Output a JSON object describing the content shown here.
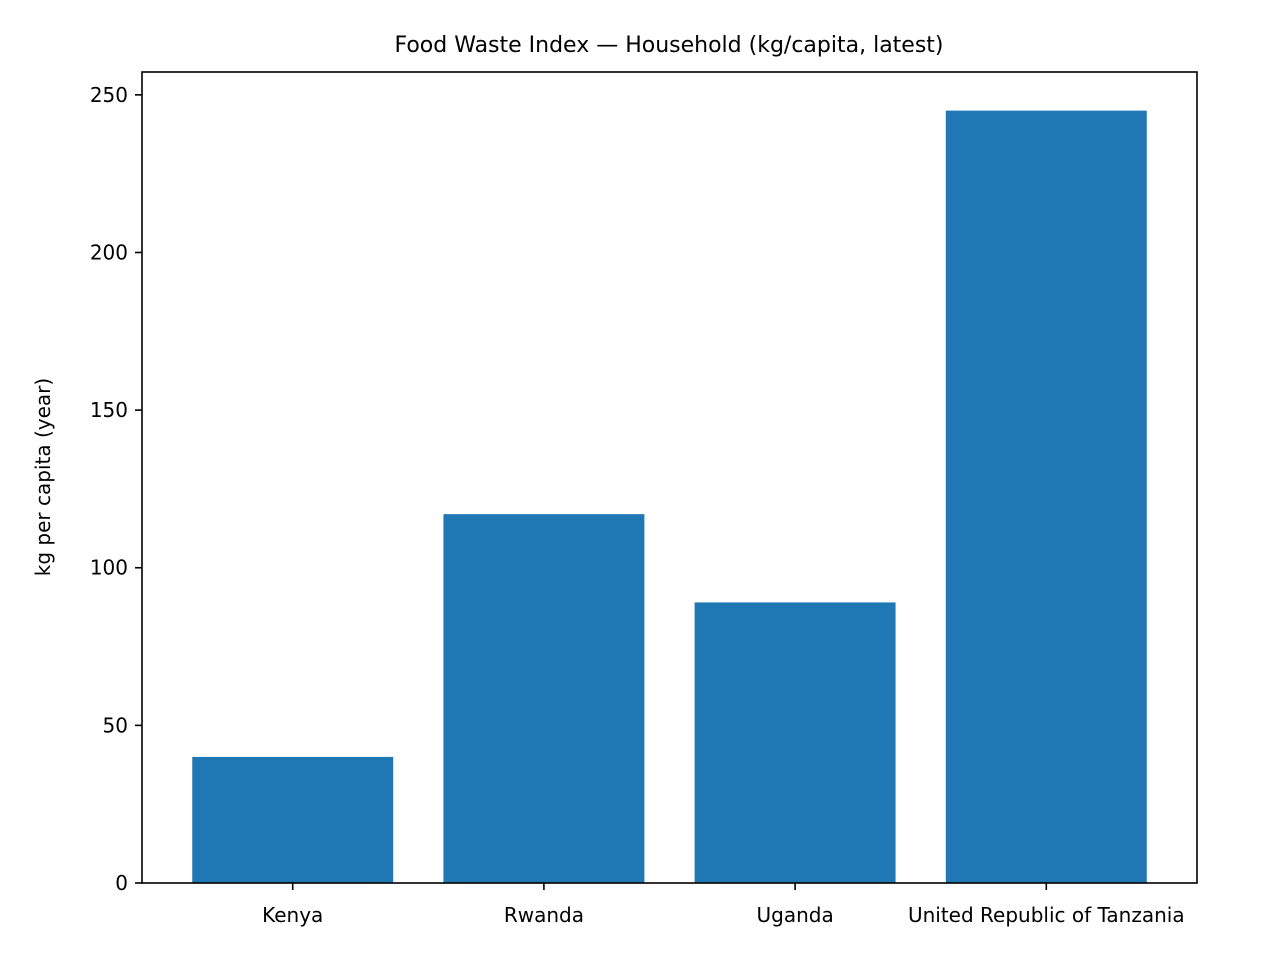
{
  "chart_data": {
    "type": "bar",
    "title": "Food Waste Index — Household (kg/capita, latest)",
    "xlabel": "",
    "ylabel": "kg per capita (year)",
    "categories": [
      "Kenya",
      "Rwanda",
      "Uganda",
      "United Republic of Tanzania"
    ],
    "values": [
      40,
      117,
      89,
      245
    ],
    "ylim": [
      0,
      257.25
    ],
    "yticks": [
      0,
      50,
      100,
      150,
      200,
      250
    ],
    "grid": false,
    "legend": "none",
    "bar_color": "#1f77b4"
  }
}
